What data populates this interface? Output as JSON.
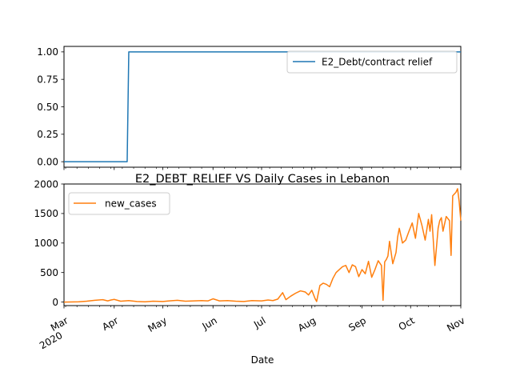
{
  "chart_data": [
    {
      "type": "line",
      "title": "",
      "xlabel": "",
      "ylabel": "",
      "ylim": [
        -0.05,
        1.05
      ],
      "yticks": [
        "0.00",
        "0.25",
        "0.50",
        "0.75",
        "1.00"
      ],
      "legend_position": "top-right",
      "grid": false,
      "series": [
        {
          "name": "E2_Debt/contract relief",
          "color": "#1f77b4",
          "x": [
            "2020-03-01",
            "2020-04-09",
            "2020-04-10",
            "2020-11-01"
          ],
          "y": [
            0,
            0,
            1,
            1
          ]
        }
      ]
    },
    {
      "type": "line",
      "title": "E2_DEBT_RELIEF VS Daily Cases in Lebanon",
      "xlabel": "Date",
      "ylabel": "",
      "ylim": [
        -60,
        2000
      ],
      "yticks": [
        "0",
        "500",
        "1000",
        "1500",
        "2000"
      ],
      "legend_position": "top-left",
      "grid": false,
      "x_tick_labels": [
        {
          "date": "2020-03-01",
          "label": "Mar",
          "sublabel": "2020"
        },
        {
          "date": "2020-04-01",
          "label": "Apr",
          "sublabel": ""
        },
        {
          "date": "2020-05-01",
          "label": "May",
          "sublabel": ""
        },
        {
          "date": "2020-06-01",
          "label": "Jun",
          "sublabel": ""
        },
        {
          "date": "2020-07-01",
          "label": "Jul",
          "sublabel": ""
        },
        {
          "date": "2020-08-01",
          "label": "Aug",
          "sublabel": ""
        },
        {
          "date": "2020-09-01",
          "label": "Sep",
          "sublabel": ""
        },
        {
          "date": "2020-10-01",
          "label": "Oct",
          "sublabel": ""
        },
        {
          "date": "2020-11-01",
          "label": "Nov",
          "sublabel": ""
        }
      ],
      "series": [
        {
          "name": "new_cases",
          "color": "#ff7f0e",
          "x": [
            "2020-03-01",
            "2020-03-10",
            "2020-03-15",
            "2020-03-20",
            "2020-03-25",
            "2020-03-28",
            "2020-03-30",
            "2020-04-01",
            "2020-04-05",
            "2020-04-10",
            "2020-04-15",
            "2020-04-20",
            "2020-04-25",
            "2020-05-01",
            "2020-05-05",
            "2020-05-10",
            "2020-05-15",
            "2020-05-20",
            "2020-05-25",
            "2020-05-29",
            "2020-06-01",
            "2020-06-05",
            "2020-06-10",
            "2020-06-15",
            "2020-06-20",
            "2020-06-25",
            "2020-07-01",
            "2020-07-05",
            "2020-07-08",
            "2020-07-11",
            "2020-07-14",
            "2020-07-16",
            "2020-07-19",
            "2020-07-22",
            "2020-07-25",
            "2020-07-28",
            "2020-07-30",
            "2020-08-01",
            "2020-08-03",
            "2020-08-04",
            "2020-08-06",
            "2020-08-08",
            "2020-08-10",
            "2020-08-12",
            "2020-08-14",
            "2020-08-16",
            "2020-08-18",
            "2020-08-20",
            "2020-08-22",
            "2020-08-24",
            "2020-08-26",
            "2020-08-28",
            "2020-08-30",
            "2020-09-01",
            "2020-09-03",
            "2020-09-05",
            "2020-09-07",
            "2020-09-09",
            "2020-09-11",
            "2020-09-13",
            "2020-09-14",
            "2020-09-15",
            "2020-09-16",
            "2020-09-17",
            "2020-09-18",
            "2020-09-20",
            "2020-09-22",
            "2020-09-23",
            "2020-09-24",
            "2020-09-26",
            "2020-09-28",
            "2020-09-30",
            "2020-10-02",
            "2020-10-04",
            "2020-10-06",
            "2020-10-08",
            "2020-10-10",
            "2020-10-12",
            "2020-10-13",
            "2020-10-14",
            "2020-10-16",
            "2020-10-18",
            "2020-10-19",
            "2020-10-20",
            "2020-10-21",
            "2020-10-23",
            "2020-10-25",
            "2020-10-26",
            "2020-10-27",
            "2020-10-29",
            "2020-10-30",
            "2020-10-31",
            "2020-11-01"
          ],
          "y": [
            0,
            5,
            15,
            30,
            40,
            20,
            35,
            45,
            15,
            25,
            10,
            5,
            15,
            10,
            20,
            30,
            15,
            20,
            25,
            20,
            55,
            20,
            25,
            15,
            10,
            25,
            20,
            35,
            25,
            50,
            160,
            40,
            100,
            150,
            190,
            170,
            120,
            200,
            60,
            10,
            280,
            320,
            300,
            260,
            400,
            500,
            550,
            600,
            620,
            500,
            630,
            600,
            430,
            550,
            480,
            690,
            420,
            550,
            700,
            620,
            30,
            680,
            720,
            780,
            1030,
            650,
            840,
            1100,
            1250,
            1000,
            1050,
            1200,
            1340,
            1080,
            1500,
            1300,
            1050,
            1400,
            1200,
            1480,
            620,
            1250,
            1380,
            1430,
            1200,
            1450,
            1380,
            790,
            1800,
            1860,
            1920,
            1700,
            1380
          ]
        }
      ]
    }
  ]
}
